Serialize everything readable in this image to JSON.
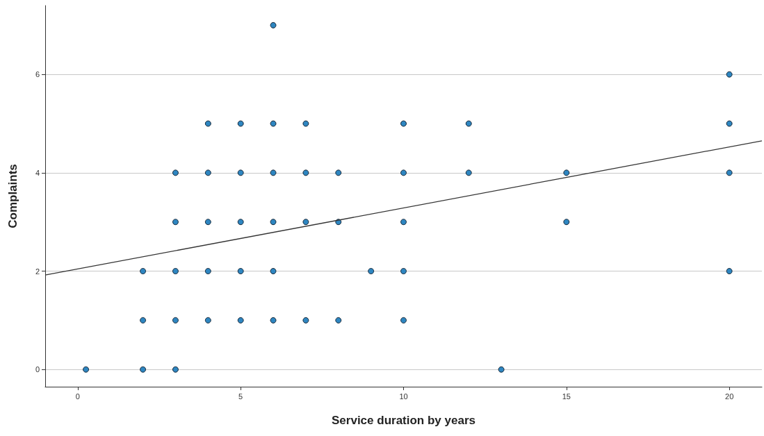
{
  "chart_data": {
    "type": "scatter",
    "xlabel": "Service duration by years",
    "ylabel": "Complaints",
    "xlim": [
      -1,
      21
    ],
    "ylim": [
      -0.35,
      7.4
    ],
    "xticks": [
      0,
      5,
      10,
      15,
      20
    ],
    "yticks": [
      0,
      2,
      4,
      6
    ],
    "grid": "y",
    "marker": "circle",
    "series": [
      {
        "color": "#2e86c1",
        "x": [
          0.25,
          2,
          2,
          2,
          3,
          3,
          3,
          3,
          3,
          4,
          4,
          4,
          4,
          4,
          5,
          5,
          5,
          5,
          5,
          6,
          6,
          6,
          6,
          6,
          6,
          7,
          7,
          7,
          7,
          8,
          8,
          8,
          9,
          10,
          10,
          10,
          10,
          10,
          12,
          12,
          13,
          15,
          15,
          20,
          20,
          20,
          20
        ],
        "values": [
          0,
          2,
          1,
          0,
          4,
          3,
          2,
          1,
          0,
          5,
          4,
          3,
          2,
          1,
          5,
          4,
          3,
          2,
          1,
          7,
          5,
          4,
          3,
          2,
          1,
          5,
          4,
          3,
          1,
          4,
          3,
          1,
          2,
          5,
          4,
          3,
          2,
          1,
          5,
          4,
          0,
          4,
          3,
          6,
          5,
          4,
          2
        ]
      },
      {
        "type": "line",
        "color": "#333333",
        "marker": "none",
        "line_style": "solid",
        "x": [
          -1,
          21
        ],
        "values": [
          1.92,
          4.65
        ]
      }
    ]
  }
}
